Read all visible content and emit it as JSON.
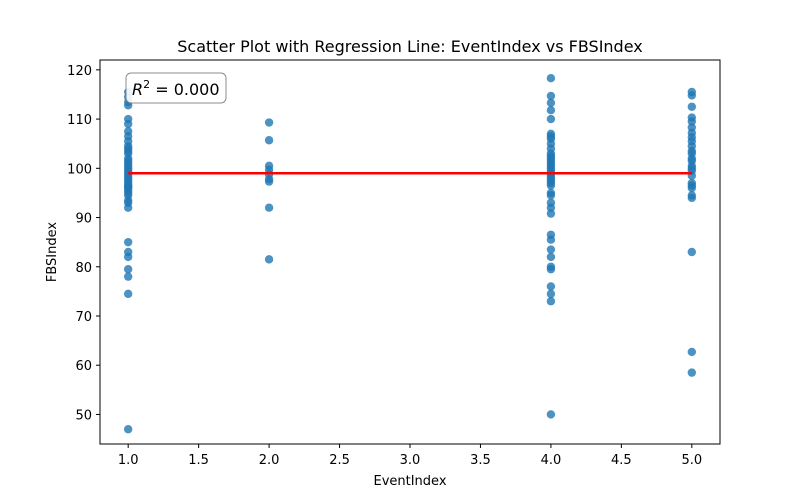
{
  "chart_data": {
    "type": "scatter",
    "title": "Scatter Plot with Regression Line: EventIndex vs FBSIndex",
    "xlabel": "EventIndex",
    "ylabel": "FBSIndex",
    "xlim": [
      0.8,
      5.2
    ],
    "ylim": [
      44,
      122
    ],
    "x_ticks": [
      "1.0",
      "1.5",
      "2.0",
      "2.5",
      "3.0",
      "3.5",
      "4.0",
      "4.5",
      "5.0"
    ],
    "y_ticks": [
      "50",
      "60",
      "70",
      "80",
      "90",
      "100",
      "110",
      "120"
    ],
    "grid": false,
    "annotation": {
      "text_prefix": "R",
      "text_sup": "2",
      "text_value": " = 0.000"
    },
    "regression_line": {
      "x": [
        1.0,
        5.0
      ],
      "y": [
        99.0,
        99.0
      ]
    },
    "colors": {
      "points": "#1f77b4",
      "regression": "#ff0000"
    },
    "x": [
      1,
      1,
      1,
      1,
      1,
      1,
      1,
      1,
      1,
      1,
      1,
      1,
      1,
      1,
      1,
      1,
      1,
      1,
      1,
      1,
      1,
      1,
      1,
      1,
      1,
      1,
      1,
      1,
      1,
      1,
      1,
      1,
      1,
      1,
      1,
      1,
      1,
      1,
      1,
      1,
      2,
      2,
      2,
      2,
      2,
      2,
      2,
      2,
      2,
      4,
      4,
      4,
      4,
      4,
      4,
      4,
      4,
      4,
      4,
      4,
      4,
      4,
      4,
      4,
      4,
      4,
      4,
      4,
      4,
      4,
      4,
      4,
      4,
      4,
      4,
      4,
      4,
      4,
      4,
      4,
      4,
      4,
      4,
      4,
      4,
      4,
      4,
      4,
      5,
      5,
      5,
      5,
      5,
      5,
      5,
      5,
      5,
      5,
      5,
      5,
      5,
      5,
      5,
      5,
      5,
      5,
      5,
      5,
      5,
      5,
      5,
      5,
      5,
      5
    ],
    "y": [
      115.5,
      114.5,
      113.5,
      112.8,
      110,
      109,
      107.5,
      106.5,
      105.5,
      104.5,
      104,
      103,
      102,
      101.5,
      100.5,
      100,
      99.5,
      99,
      98.5,
      98,
      97,
      96.5,
      96,
      95.5,
      95,
      94.5,
      93.5,
      93,
      92,
      85,
      83,
      82,
      79.5,
      78,
      74.5,
      47,
      103.5,
      101,
      97.5,
      96.3,
      109.3,
      105.7,
      100.5,
      99.7,
      98.8,
      97.8,
      97.3,
      92,
      81.5,
      118.3,
      114.7,
      113.3,
      111.8,
      110,
      107,
      106.5,
      105,
      104,
      103,
      102.5,
      101.5,
      101,
      100.5,
      100,
      99.5,
      99,
      98.5,
      98,
      97.5,
      97,
      95,
      94.5,
      93,
      92,
      90.8,
      86.5,
      85.5,
      83.5,
      82,
      80,
      79.5,
      76,
      74.5,
      73,
      50,
      102,
      96.5,
      106,
      115.5,
      114.8,
      112.5,
      110.3,
      109.5,
      108.3,
      107.2,
      106.3,
      105.5,
      104.5,
      103.5,
      103,
      102,
      101.5,
      100.5,
      100,
      99.5,
      98.5,
      97,
      96.5,
      96,
      94.5,
      94,
      83,
      62.7,
      58.5
    ]
  }
}
